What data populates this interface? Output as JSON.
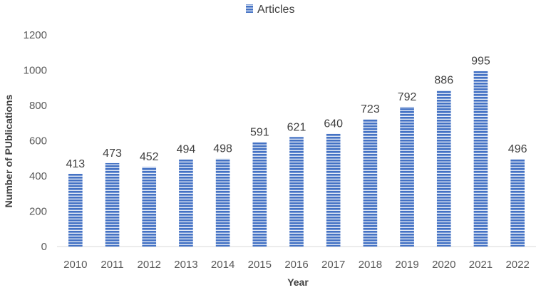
{
  "chart_data": {
    "type": "bar",
    "categories": [
      "2010",
      "2011",
      "2012",
      "2013",
      "2014",
      "2015",
      "2016",
      "2017",
      "2018",
      "2019",
      "2020",
      "2021",
      "2022"
    ],
    "series": [
      {
        "name": "Articles",
        "values": [
          413,
          473,
          452,
          494,
          498,
          591,
          621,
          640,
          723,
          792,
          886,
          995,
          496
        ]
      }
    ],
    "xlabel": "Year",
    "ylabel": "Number of PUblications",
    "ylim": [
      0,
      1200
    ],
    "yticks": [
      "0",
      "200",
      "400",
      "600",
      "800",
      "1000",
      "1200"
    ],
    "grid": false,
    "legend_position": "top-center",
    "data_labels": true,
    "colors": {
      "bar": "#4472C4",
      "bar_stripe": "#ffffff",
      "text": "#404040"
    }
  }
}
